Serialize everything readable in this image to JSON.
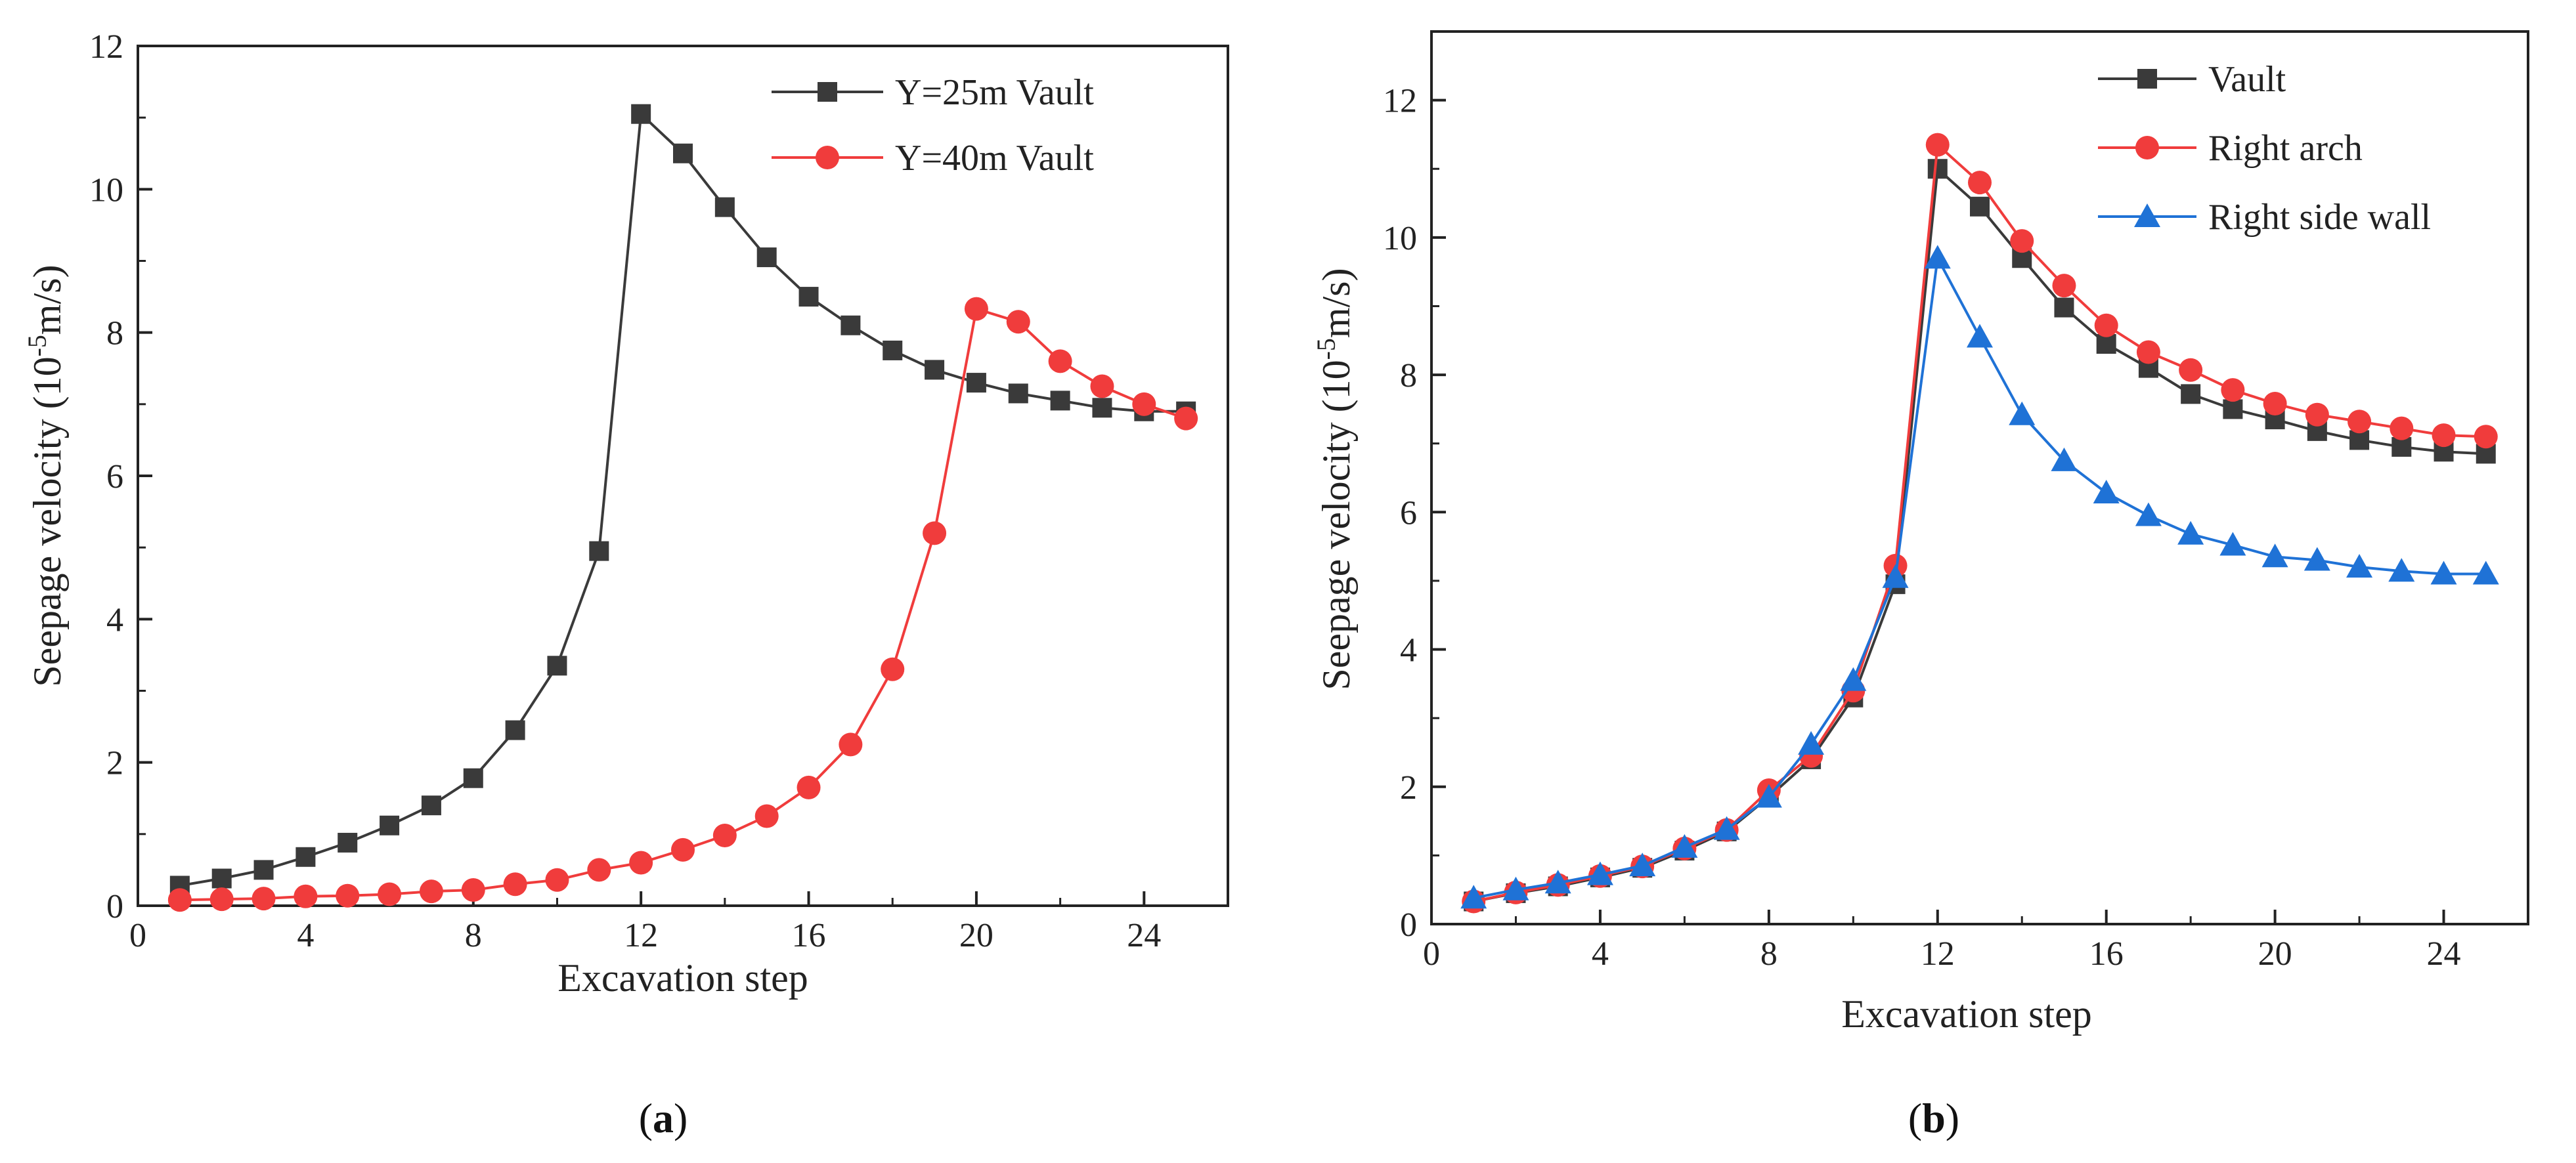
{
  "chart_data": [
    {
      "type": "line",
      "panel_label": "a",
      "xlabel": "Excavation step",
      "ylabel_prefix": "Seepage velocity (10",
      "ylabel_exp": "-5",
      "ylabel_suffix": "m/s)",
      "xlim": [
        0,
        26
      ],
      "ylim": [
        0,
        12
      ],
      "xticks": [
        0,
        4,
        8,
        12,
        16,
        20,
        24
      ],
      "yticks": [
        0,
        2,
        4,
        6,
        8,
        10,
        12
      ],
      "grid": false,
      "legend_position": "top-right",
      "x": [
        1,
        2,
        3,
        4,
        5,
        6,
        7,
        8,
        9,
        10,
        11,
        12,
        13,
        14,
        15,
        16,
        17,
        18,
        19,
        20,
        21,
        22,
        23,
        24,
        25
      ],
      "series": [
        {
          "name": "Y=25m Vault",
          "color": "#3a3a3a",
          "marker": "square",
          "values": [
            0.28,
            0.38,
            0.5,
            0.68,
            0.88,
            1.12,
            1.4,
            1.78,
            2.45,
            3.35,
            4.95,
            11.05,
            10.5,
            9.75,
            9.05,
            8.5,
            8.1,
            7.75,
            7.48,
            7.3,
            7.15,
            7.05,
            6.95,
            6.9,
            6.9
          ]
        },
        {
          "name": "Y=40m Vault",
          "color": "#f03c3c",
          "marker": "circle",
          "values": [
            0.08,
            0.09,
            0.1,
            0.13,
            0.14,
            0.16,
            0.2,
            0.22,
            0.3,
            0.36,
            0.5,
            0.6,
            0.78,
            0.98,
            1.25,
            1.65,
            2.25,
            3.3,
            5.2,
            8.33,
            8.15,
            7.6,
            7.25,
            7.0,
            6.8
          ]
        }
      ]
    },
    {
      "type": "line",
      "panel_label": "b",
      "xlabel": "Excavation step",
      "ylabel_prefix": "Seepage velocity (10",
      "ylabel_exp": "-5",
      "ylabel_suffix": "m/s)",
      "xlim": [
        0,
        26
      ],
      "ylim": [
        0,
        13
      ],
      "xticks": [
        0,
        4,
        8,
        12,
        16,
        20,
        24
      ],
      "yticks": [
        0,
        2,
        4,
        6,
        8,
        10,
        12
      ],
      "grid": false,
      "legend_position": "top-right",
      "x": [
        1,
        2,
        3,
        4,
        5,
        6,
        7,
        8,
        9,
        10,
        11,
        12,
        13,
        14,
        15,
        16,
        17,
        18,
        19,
        20,
        21,
        22,
        23,
        24,
        25
      ],
      "series": [
        {
          "name": "Vault",
          "color": "#3a3a3a",
          "marker": "square",
          "values": [
            0.33,
            0.45,
            0.55,
            0.68,
            0.82,
            1.07,
            1.35,
            1.85,
            2.4,
            3.3,
            4.95,
            11.0,
            10.45,
            9.7,
            8.98,
            8.45,
            8.1,
            7.72,
            7.5,
            7.35,
            7.18,
            7.05,
            6.95,
            6.88,
            6.85
          ]
        },
        {
          "name": "Right arch",
          "color": "#f03c3c",
          "marker": "circle",
          "values": [
            0.33,
            0.46,
            0.57,
            0.7,
            0.84,
            1.1,
            1.37,
            1.95,
            2.45,
            3.4,
            5.22,
            11.35,
            10.8,
            9.95,
            9.3,
            8.72,
            8.33,
            8.07,
            7.78,
            7.58,
            7.42,
            7.32,
            7.22,
            7.12,
            7.1
          ]
        },
        {
          "name": "Right side wall",
          "color": "#1f72d6",
          "marker": "triangle",
          "values": [
            0.38,
            0.5,
            0.6,
            0.72,
            0.85,
            1.12,
            1.38,
            1.85,
            2.62,
            3.55,
            5.05,
            9.7,
            8.55,
            7.42,
            6.75,
            6.28,
            5.95,
            5.68,
            5.52,
            5.35,
            5.3,
            5.2,
            5.14,
            5.1,
            5.1
          ]
        }
      ]
    }
  ]
}
